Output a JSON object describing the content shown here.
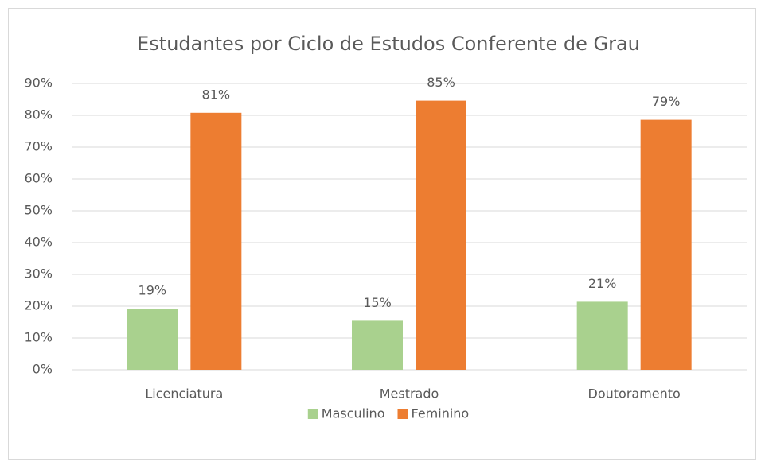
{
  "chart_data": {
    "type": "bar",
    "title": "Estudantes por Ciclo de Estudos Conferente de Grau",
    "categories": [
      "Licenciatura",
      "Mestrado",
      "Doutoramento"
    ],
    "series": [
      {
        "name": "Masculino",
        "color": "#a9d18e",
        "values": [
          19.2,
          15.4,
          21.4
        ],
        "value_labels": [
          "19%",
          "15%",
          "21%"
        ]
      },
      {
        "name": "Feminino",
        "color": "#ed7d31",
        "values": [
          80.8,
          84.6,
          78.6
        ],
        "value_labels": [
          "81%",
          "85%",
          "79%"
        ]
      }
    ],
    "ylim": [
      0,
      90
    ],
    "yticks": [
      {
        "value": 0,
        "label": "0%"
      },
      {
        "value": 10,
        "label": "10%"
      },
      {
        "value": 20,
        "label": "20%"
      },
      {
        "value": 30,
        "label": "30%"
      },
      {
        "value": 40,
        "label": "40%"
      },
      {
        "value": 50,
        "label": "50%"
      },
      {
        "value": 60,
        "label": "60%"
      },
      {
        "value": 70,
        "label": "70%"
      },
      {
        "value": 80,
        "label": "80%"
      },
      {
        "value": 90,
        "label": "90%"
      }
    ],
    "grid": true,
    "legend": "bottom"
  }
}
